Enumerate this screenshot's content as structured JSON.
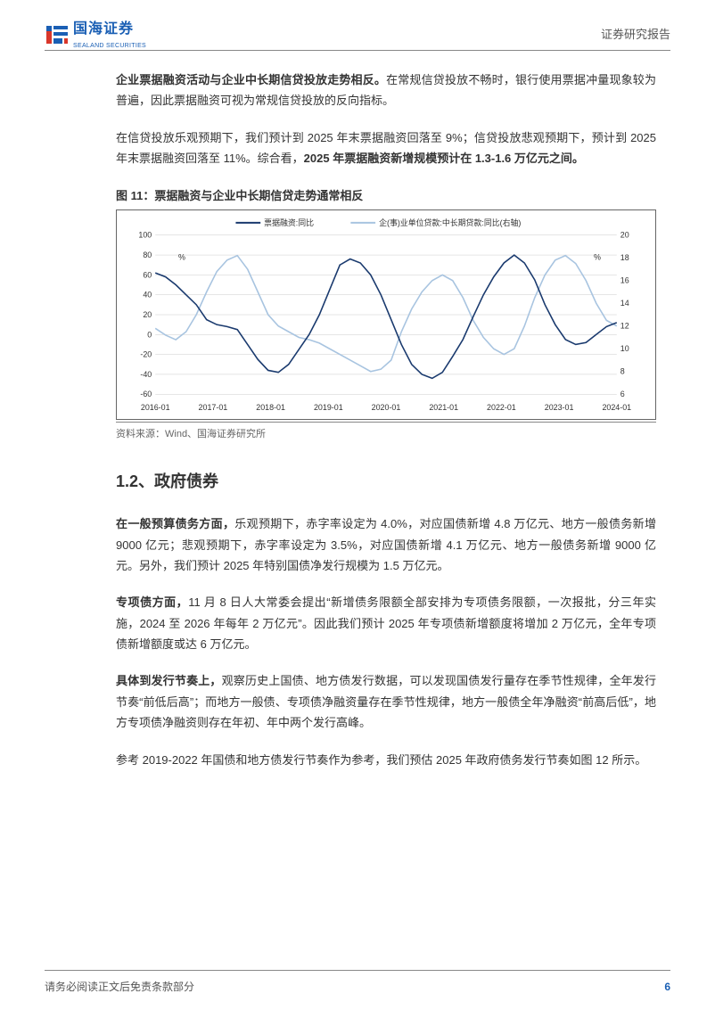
{
  "header": {
    "logo_cn": "国海证券",
    "logo_en": "SEALAND SECURITIES",
    "report_type": "证券研究报告"
  },
  "body": {
    "p1_bold": "企业票据融资活动与企业中长期信贷投放走势相反。",
    "p1_rest": "在常规信贷投放不畅时，银行使用票据冲量现象较为普遍，因此票据融资可视为常规信贷投放的反向指标。",
    "p2_a": "在信贷投放乐观预期下，我们预计到 2025 年末票据融资回落至 9%；信贷投放悲观预期下，预计到 2025 年末票据融资回落至 11%。综合看，",
    "p2_bold": "2025 年票据融资新增规模预计在 1.3-1.6 万亿元之间。",
    "fig11": {
      "title": "图 11：票据融资与企业中长期信贷走势通常相反",
      "type": "line",
      "legend": {
        "s1": "票据融资:同比",
        "s2": "企(事)业单位贷款:中长期贷款:同比(右轴)"
      },
      "left_axis": {
        "min": -60,
        "max": 100,
        "step": 20,
        "unit": "%"
      },
      "right_axis": {
        "min": 6,
        "max": 20,
        "step": 2,
        "unit": "%"
      },
      "x_labels": [
        "2016-01",
        "2017-01",
        "2018-01",
        "2019-01",
        "2020-01",
        "2021-01",
        "2022-01",
        "2023-01",
        "2024-01"
      ],
      "series1": [
        62,
        58,
        50,
        40,
        30,
        15,
        10,
        8,
        5,
        -10,
        -25,
        -36,
        -38,
        -30,
        -15,
        0,
        20,
        45,
        70,
        76,
        72,
        60,
        40,
        15,
        -10,
        -30,
        -40,
        -44,
        -38,
        -22,
        -5,
        18,
        40,
        58,
        72,
        80,
        72,
        55,
        30,
        10,
        -5,
        -10,
        -8,
        0,
        8,
        12
      ],
      "series2": [
        11.8,
        11.2,
        10.8,
        11.5,
        13.0,
        15.0,
        16.8,
        17.8,
        18.2,
        17.0,
        15.0,
        13.0,
        12.0,
        11.5,
        11.0,
        10.8,
        10.5,
        10.0,
        9.5,
        9.0,
        8.5,
        8.0,
        8.2,
        9.0,
        11.5,
        13.5,
        15.0,
        16.0,
        16.5,
        16.0,
        14.5,
        12.5,
        11.0,
        10.0,
        9.5,
        10.0,
        12.0,
        14.5,
        16.5,
        17.8,
        18.2,
        17.5,
        16.0,
        14.0,
        12.5,
        12.0
      ],
      "colors": {
        "s1": "#1a3a6e",
        "s2": "#a8c4e0",
        "grid": "#cccccc",
        "axis": "#666666",
        "text": "#333333",
        "bg": "#ffffff"
      },
      "line_width": 1.6,
      "font_size_axis": 9,
      "font_size_legend": 9
    },
    "source": "资料来源：Wind、国海证券研究所",
    "section_1_2": "1.2、政府债券",
    "p3_bold": "在一般预算债务方面，",
    "p3_rest": "乐观预期下，赤字率设定为 4.0%，对应国债新增 4.8 万亿元、地方一般债务新增 9000 亿元；悲观预期下，赤字率设定为 3.5%，对应国债新增 4.1 万亿元、地方一般债务新增 9000 亿元。另外，我们预计 2025 年特别国债净发行规模为 1.5 万亿元。",
    "p4_bold": "专项债方面，",
    "p4_rest": "11 月 8 日人大常委会提出“新增债务限额全部安排为专项债务限额，一次报批，分三年实施，2024 至 2026 年每年 2 万亿元”。因此我们预计 2025 年专项债新增额度将增加 2 万亿元，全年专项债新增额度或达 6 万亿元。",
    "p5_bold": "具体到发行节奏上，",
    "p5_rest": "观察历史上国债、地方债发行数据，可以发现国债发行量存在季节性规律，全年发行节奏“前低后高”；而地方一般债、专项债净融资量存在季节性规律，地方一般债全年净融资“前高后低”，地方专项债净融资则存在年初、年中两个发行高峰。",
    "p6": "参考 2019-2022 年国债和地方债发行节奏作为参考，我们预估 2025 年政府债务发行节奏如图 12 所示。"
  },
  "footer": {
    "disclaimer": "请务必阅读正文后免责条款部分",
    "page": "6"
  }
}
